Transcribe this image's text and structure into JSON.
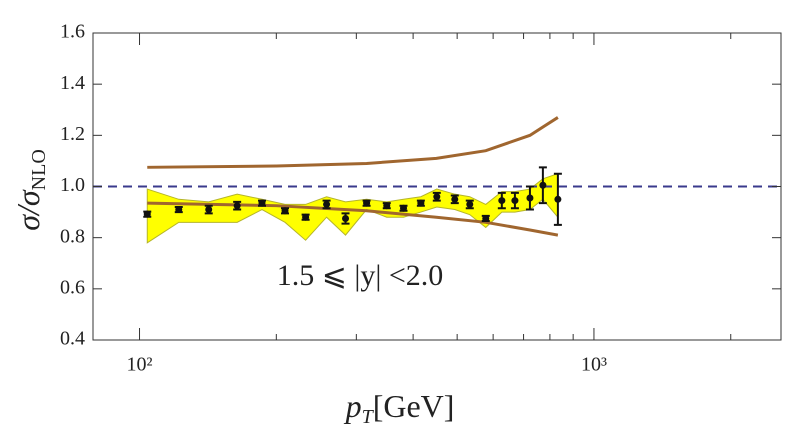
{
  "chart_data": {
    "type": "scatter",
    "x": [
      104,
      122,
      142,
      164,
      186,
      209,
      232,
      258,
      284,
      316,
      350,
      381,
      416,
      451,
      494,
      533,
      578,
      627,
      670,
      723,
      772,
      833
    ],
    "series": [
      {
        "color": "#111111",
        "values": [
          0.892,
          0.91,
          0.91,
          0.925,
          0.935,
          0.905,
          0.88,
          0.93,
          0.875,
          0.935,
          0.925,
          0.915,
          0.935,
          0.96,
          0.95,
          0.93,
          0.875,
          0.945,
          0.945,
          0.955,
          1.005,
          0.95
        ],
        "errors": [
          0.01,
          0.01,
          0.015,
          0.015,
          0.01,
          0.01,
          0.01,
          0.015,
          0.02,
          0.01,
          0.01,
          0.01,
          0.01,
          0.015,
          0.015,
          0.015,
          0.01,
          0.03,
          0.03,
          0.045,
          0.07,
          0.1
        ]
      }
    ],
    "band": {
      "color": "#ffff00",
      "edge": "#b5b52a",
      "upper": [
        0.99,
        0.95,
        0.94,
        0.97,
        0.95,
        0.93,
        0.93,
        0.96,
        0.94,
        0.95,
        0.94,
        0.95,
        0.96,
        0.99,
        0.97,
        0.96,
        0.93,
        0.98,
        0.98,
        0.99,
        1.03,
        1.05
      ],
      "lower": [
        0.78,
        0.86,
        0.86,
        0.86,
        0.91,
        0.86,
        0.79,
        0.88,
        0.81,
        0.91,
        0.88,
        0.88,
        0.9,
        0.92,
        0.91,
        0.89,
        0.84,
        0.9,
        0.9,
        0.91,
        0.95,
        0.88
      ]
    },
    "curves": [
      {
        "color": "#a0662f",
        "x": [
          104,
          200,
          316,
          450,
          578,
          723,
          833
        ],
        "values": [
          1.075,
          1.08,
          1.09,
          1.11,
          1.14,
          1.2,
          1.27
        ]
      },
      {
        "color": "#a0662f",
        "x": [
          104,
          200,
          316,
          450,
          578,
          723,
          833
        ],
        "values": [
          0.935,
          0.925,
          0.905,
          0.88,
          0.86,
          0.83,
          0.81
        ]
      }
    ],
    "reference_line": 1,
    "reference_color": "#3a3a8c",
    "annotation": "1.5 ⩽ |y| <2.0",
    "ylabel": "σ/σ",
    "ylabel_sub": "NLO",
    "xlabel": "p",
    "xlabel_sub": "T",
    "xlabel_unit": "[GeV]",
    "xscale": "log",
    "xlim": [
      79,
      2580
    ],
    "xticks": [
      {
        "value": 100,
        "label": "10²"
      },
      {
        "value": 1000,
        "label": "10³"
      }
    ],
    "xminorticks": [
      200,
      300,
      400,
      500,
      600,
      700,
      800,
      900,
      2000
    ],
    "ylim": [
      0.4,
      1.6
    ],
    "yticks": [
      0.4,
      0.6,
      0.8,
      {
        "value": 1,
        "label": "1.0"
      },
      1.2,
      1.4,
      1.6
    ]
  }
}
